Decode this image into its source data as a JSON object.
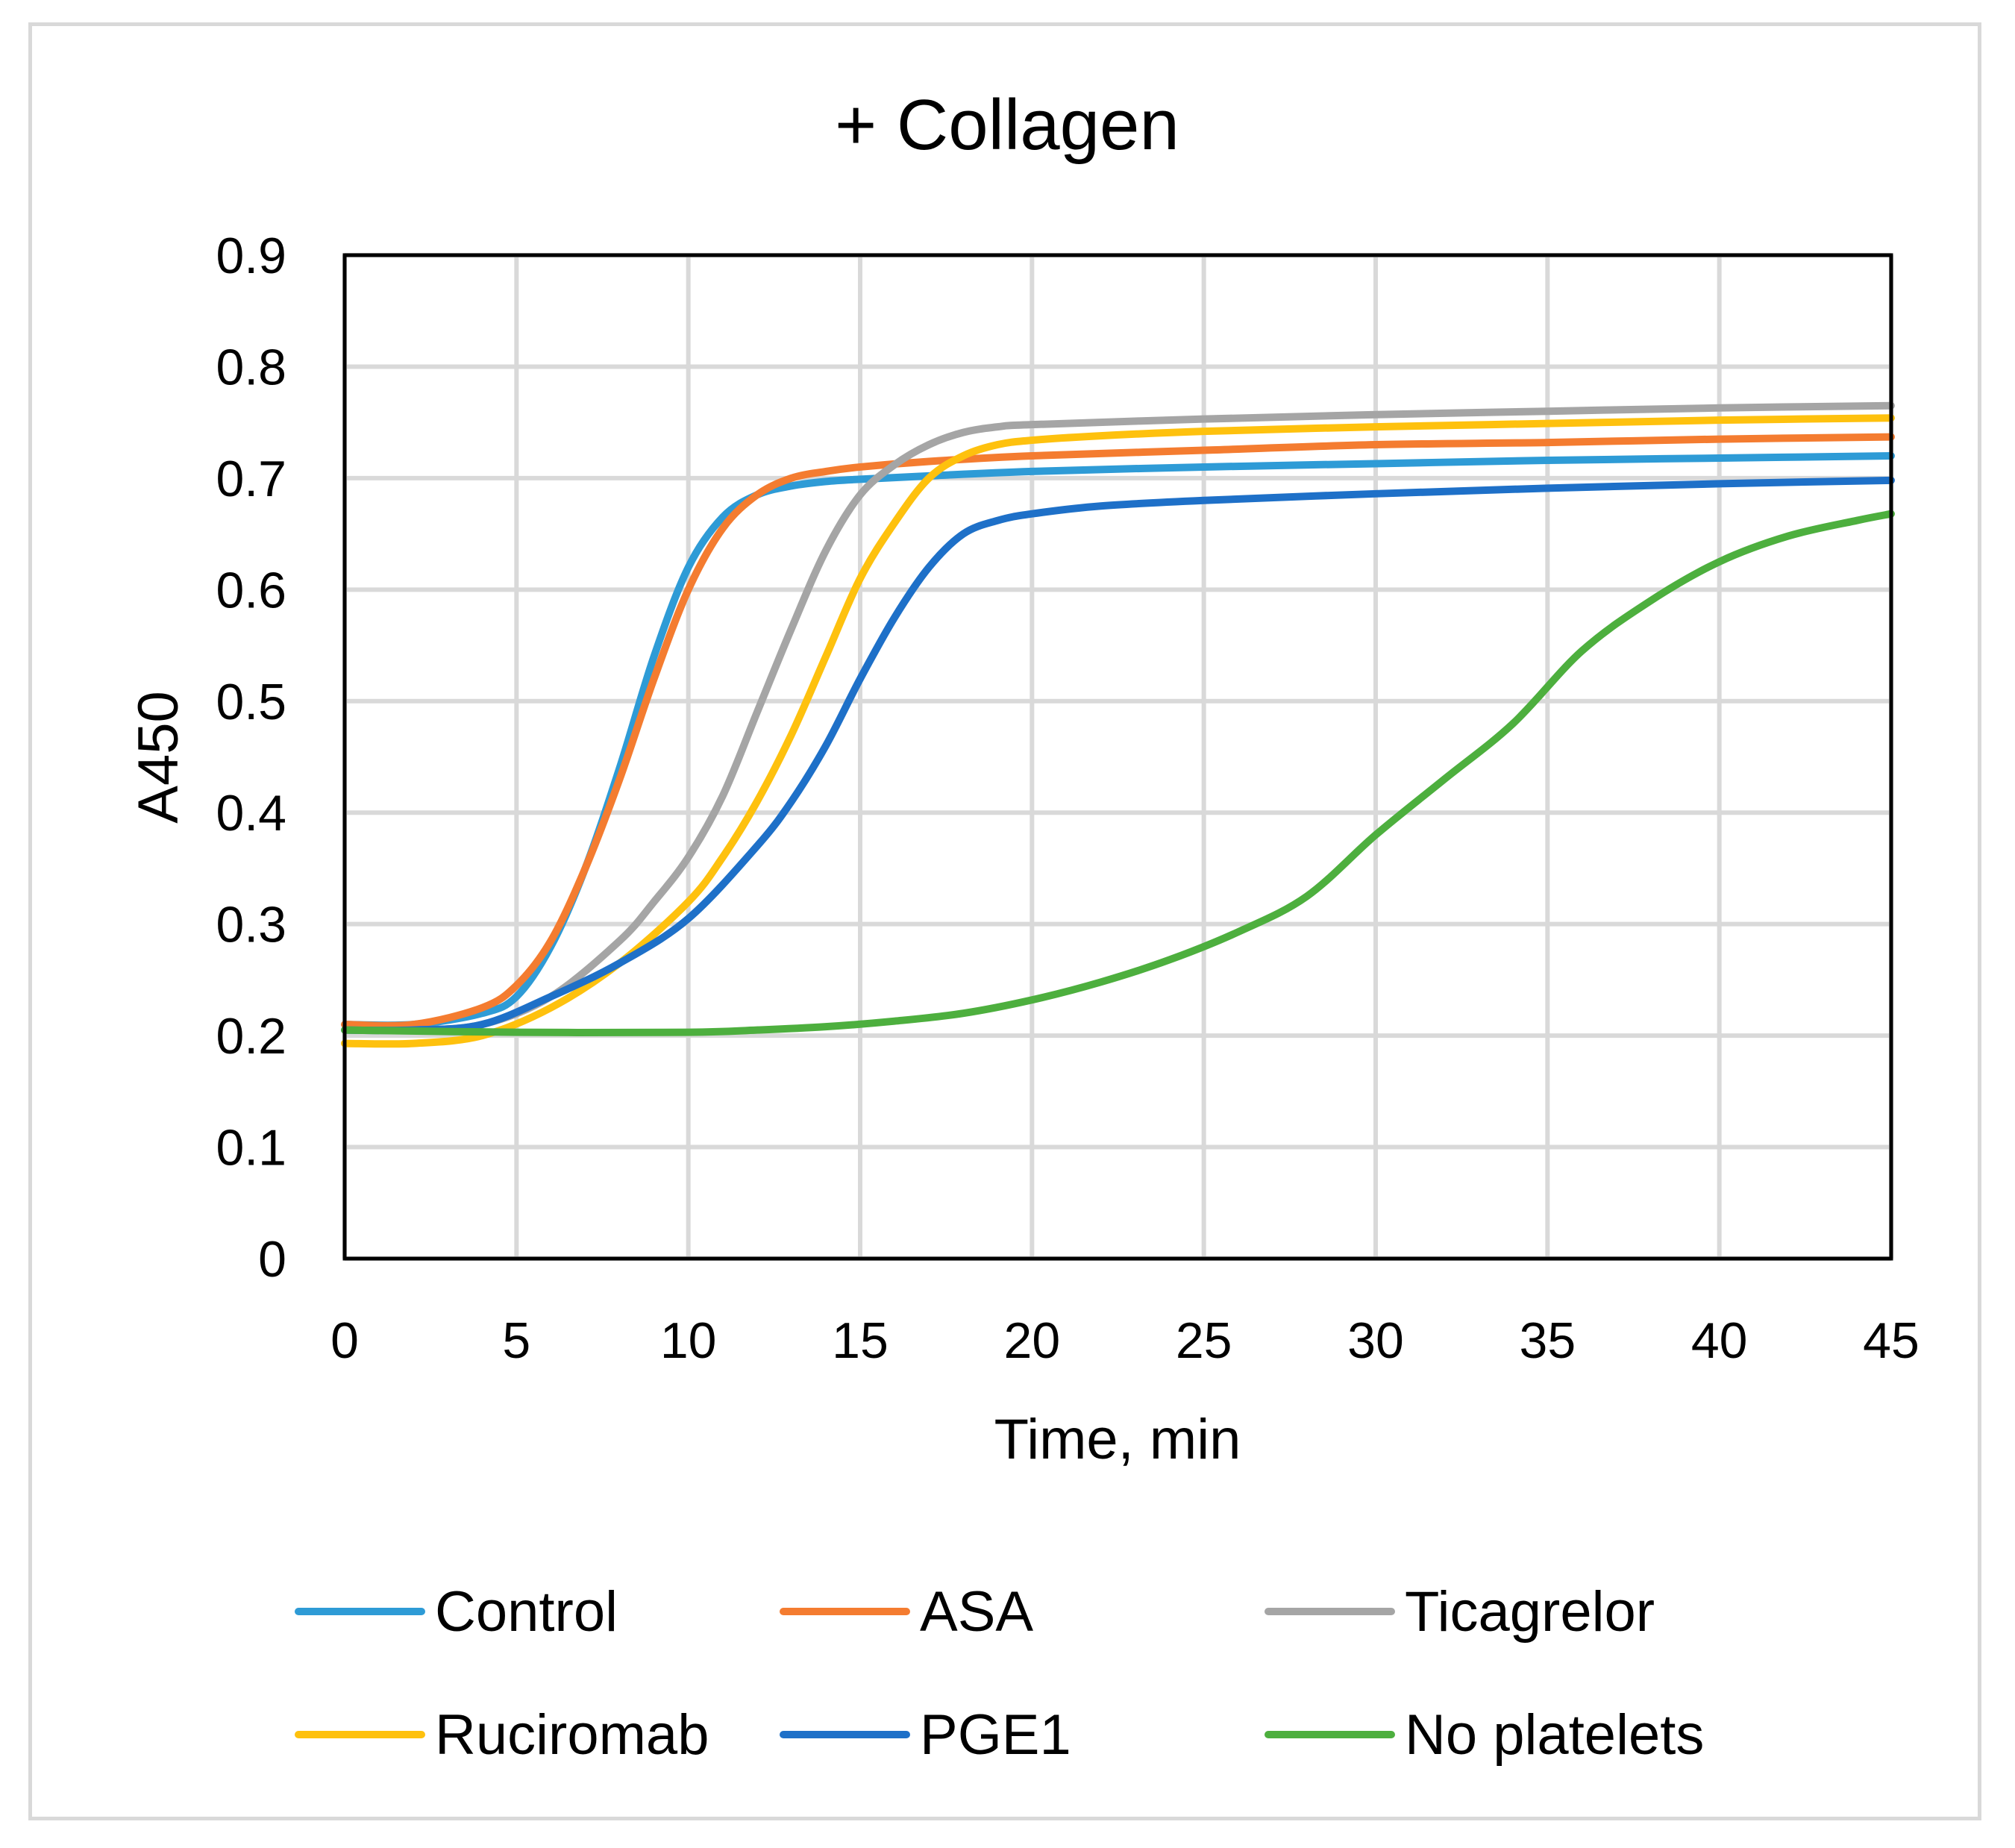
{
  "chart_data": {
    "type": "line",
    "title": "+ Collagen",
    "xlabel": "Time, min",
    "ylabel": "A450",
    "xlim": [
      0,
      45
    ],
    "ylim": [
      0,
      0.9
    ],
    "xticks": [
      "0",
      "5",
      "10",
      "15",
      "20",
      "25",
      "30",
      "35",
      "40",
      "45"
    ],
    "yticks": [
      "0",
      "0.1",
      "0.2",
      "0.3",
      "0.4",
      "0.5",
      "0.6",
      "0.7",
      "0.8",
      "0.9"
    ],
    "grid": true,
    "legend_position": "bottom",
    "series": [
      {
        "name": "Control",
        "color": "#2e9bd6",
        "x": [
          0,
          2,
          4,
          5,
          6,
          7,
          8,
          9,
          10,
          11,
          12,
          13,
          14,
          15,
          17,
          20,
          25,
          30,
          35,
          40,
          45
        ],
        "y": [
          0.21,
          0.21,
          0.22,
          0.235,
          0.28,
          0.35,
          0.44,
          0.54,
          0.62,
          0.665,
          0.685,
          0.693,
          0.697,
          0.699,
          0.702,
          0.706,
          0.71,
          0.713,
          0.716,
          0.718,
          0.72
        ]
      },
      {
        "name": "ASA",
        "color": "#f47c30",
        "x": [
          0,
          2,
          4,
          5,
          6,
          7,
          8,
          9,
          10,
          11,
          12,
          13,
          14,
          15,
          17,
          20,
          25,
          30,
          35,
          40,
          45
        ],
        "y": [
          0.21,
          0.21,
          0.225,
          0.245,
          0.285,
          0.35,
          0.43,
          0.52,
          0.6,
          0.655,
          0.685,
          0.7,
          0.706,
          0.71,
          0.715,
          0.72,
          0.725,
          0.73,
          0.732,
          0.735,
          0.737
        ]
      },
      {
        "name": "Ticagrelor",
        "color": "#a5a5a5",
        "x": [
          0,
          2,
          4,
          6,
          8,
          9,
          10,
          11,
          12,
          13,
          14,
          15,
          16,
          17,
          18,
          19,
          20,
          25,
          30,
          35,
          40,
          45
        ],
        "y": [
          0.205,
          0.205,
          0.21,
          0.235,
          0.285,
          0.32,
          0.36,
          0.415,
          0.49,
          0.565,
          0.635,
          0.685,
          0.712,
          0.73,
          0.741,
          0.746,
          0.748,
          0.753,
          0.757,
          0.76,
          0.763,
          0.765
        ]
      },
      {
        "name": "Ruciromab",
        "color": "#fec10e",
        "x": [
          0,
          2,
          4,
          6,
          8,
          10,
          11,
          12,
          13,
          14,
          15,
          16,
          17,
          18,
          19,
          20,
          22,
          25,
          30,
          35,
          40,
          45
        ],
        "y": [
          0.193,
          0.193,
          0.2,
          0.225,
          0.265,
          0.32,
          0.36,
          0.41,
          0.47,
          0.54,
          0.61,
          0.66,
          0.7,
          0.72,
          0.73,
          0.734,
          0.738,
          0.742,
          0.746,
          0.749,
          0.752,
          0.754
        ]
      },
      {
        "name": "PGE1",
        "color": "#1e70c8",
        "x": [
          0,
          2,
          4,
          6,
          8,
          10,
          12,
          13,
          14,
          15,
          16,
          17,
          18,
          19,
          20,
          22,
          25,
          30,
          35,
          40,
          45
        ],
        "y": [
          0.205,
          0.205,
          0.21,
          0.235,
          0.265,
          0.305,
          0.37,
          0.41,
          0.46,
          0.52,
          0.575,
          0.62,
          0.65,
          0.662,
          0.668,
          0.675,
          0.68,
          0.686,
          0.691,
          0.695,
          0.698
        ]
      },
      {
        "name": "No platelets",
        "color": "#4daf3e",
        "x": [
          0,
          5,
          10,
          12,
          14,
          16,
          18,
          20,
          22,
          24,
          26,
          28,
          30,
          32,
          34,
          36,
          38,
          40,
          42,
          44,
          45
        ],
        "y": [
          0.205,
          0.203,
          0.203,
          0.205,
          0.208,
          0.213,
          0.22,
          0.232,
          0.248,
          0.268,
          0.293,
          0.325,
          0.38,
          0.43,
          0.48,
          0.545,
          0.59,
          0.625,
          0.648,
          0.662,
          0.668
        ]
      }
    ]
  }
}
